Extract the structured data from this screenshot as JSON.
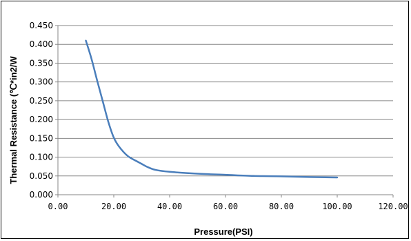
{
  "chart_data": {
    "type": "line",
    "title": "",
    "xlabel": "Pressure(PSI)",
    "ylabel": "Thermal Resistance (℃*in2/W",
    "xlim": [
      0,
      120
    ],
    "ylim": [
      0,
      0.45
    ],
    "x_ticks": [
      "0.00",
      "20.00",
      "40.00",
      "60.00",
      "80.00",
      "100.00",
      "120.00"
    ],
    "y_ticks": [
      "0.000",
      "0.050",
      "0.100",
      "0.150",
      "0.200",
      "0.250",
      "0.300",
      "0.350",
      "0.400",
      "0.450"
    ],
    "grid": true,
    "legend": "none",
    "series": [
      {
        "color": "#4a7ebb",
        "x": [
          10,
          12,
          14,
          16,
          18,
          20,
          22,
          25,
          28,
          30,
          32,
          35,
          40,
          50,
          60,
          70,
          80,
          90,
          100
        ],
        "y": [
          0.41,
          0.362,
          0.305,
          0.25,
          0.195,
          0.152,
          0.127,
          0.103,
          0.09,
          0.082,
          0.074,
          0.066,
          0.061,
          0.056,
          0.053,
          0.05,
          0.049,
          0.047,
          0.046
        ]
      }
    ]
  }
}
